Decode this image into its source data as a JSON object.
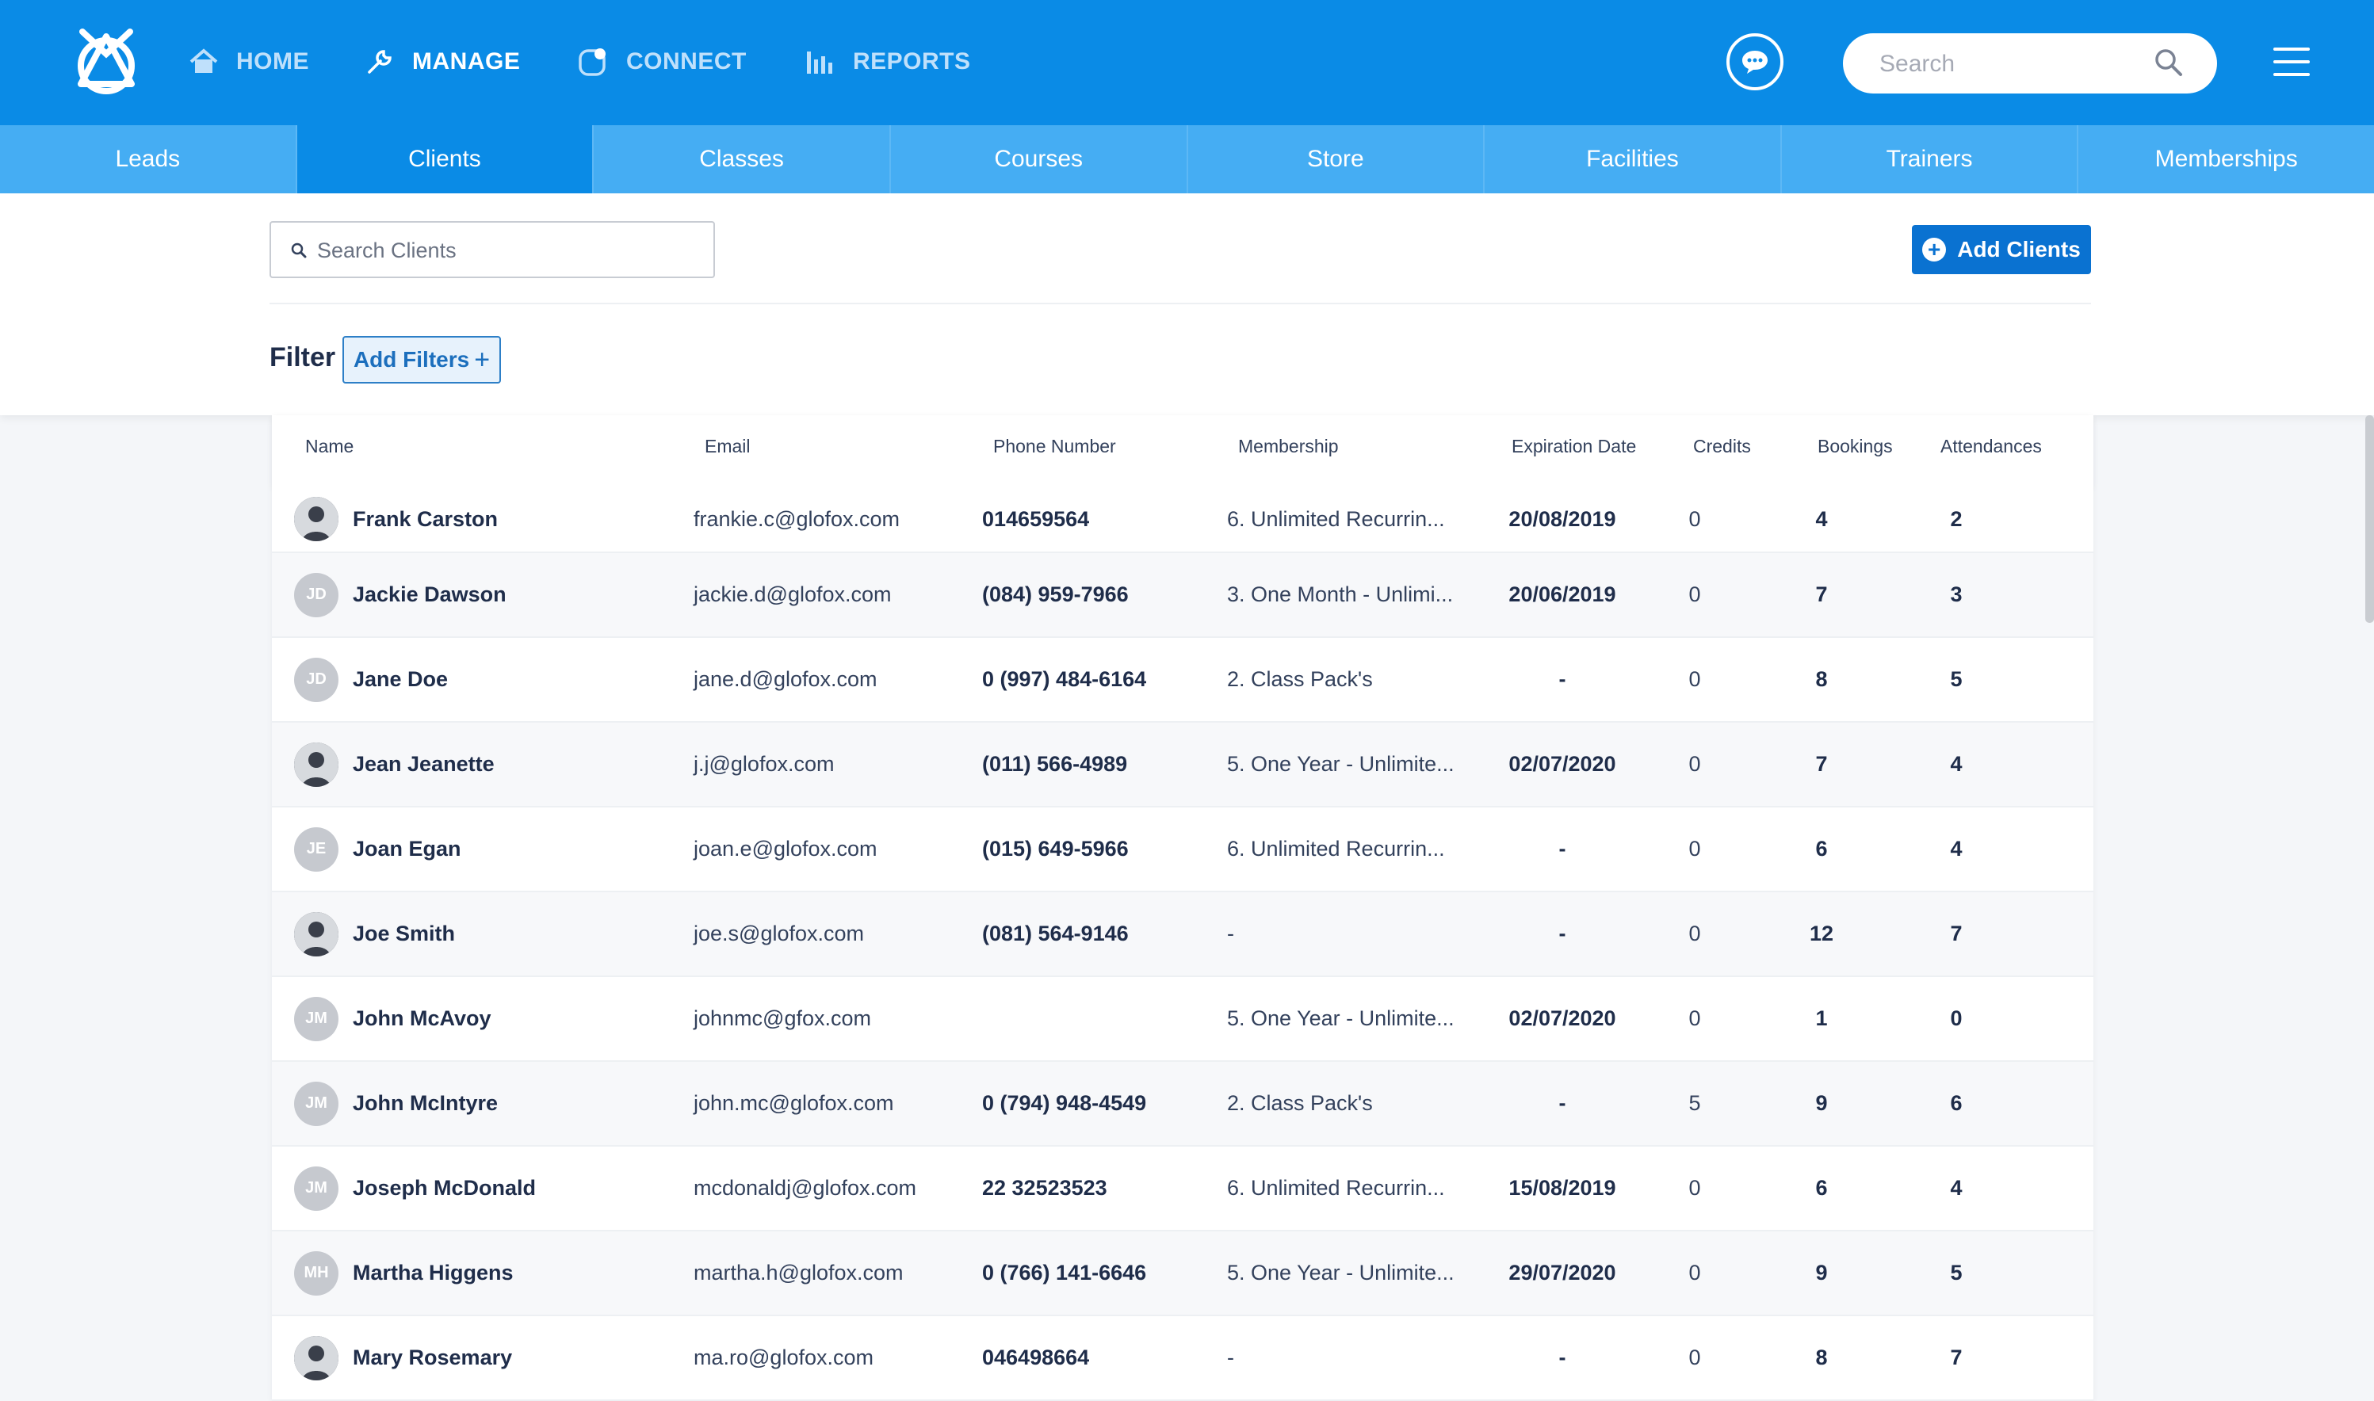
{
  "topnav": {
    "items": [
      {
        "label": "HOME",
        "icon": "home-icon"
      },
      {
        "label": "MANAGE",
        "icon": "wrench-icon"
      },
      {
        "label": "CONNECT",
        "icon": "connect-icon"
      },
      {
        "label": "REPORTS",
        "icon": "bar-chart-icon"
      }
    ],
    "active": "MANAGE",
    "search_placeholder": "Search"
  },
  "subnav": {
    "tabs": [
      "Leads",
      "Clients",
      "Classes",
      "Courses",
      "Store",
      "Facilities",
      "Trainers",
      "Memberships"
    ],
    "active": "Clients"
  },
  "toolbar": {
    "search_placeholder": "Search Clients",
    "add_clients_label": "Add Clients",
    "filter_label": "Filter",
    "add_filters_label": "Add Filters"
  },
  "table": {
    "columns": [
      "Name",
      "Email",
      "Phone Number",
      "Membership",
      "Expiration Date",
      "Credits",
      "Bookings",
      "Attendances"
    ],
    "rows": [
      {
        "name": "Frank Carston",
        "initials": "",
        "photo": true,
        "email": "frankie.c@glofox.com",
        "phone": "014659564",
        "membership": "6. Unlimited Recurrin...",
        "expiration": "20/08/2019",
        "credits": "0",
        "bookings": "4",
        "attendances": "2"
      },
      {
        "name": "Jackie Dawson",
        "initials": "JD",
        "photo": false,
        "email": "jackie.d@glofox.com",
        "phone": "(084) 959-7966",
        "membership": "3. One Month - Unlimi...",
        "expiration": "20/06/2019",
        "credits": "0",
        "bookings": "7",
        "attendances": "3"
      },
      {
        "name": "Jane Doe",
        "initials": "JD",
        "photo": false,
        "email": "jane.d@glofox.com",
        "phone": "0 (997) 484-6164",
        "membership": "2. Class Pack's",
        "expiration": "-",
        "credits": "0",
        "bookings": "8",
        "attendances": "5"
      },
      {
        "name": "Jean Jeanette",
        "initials": "",
        "photo": true,
        "email": "j.j@glofox.com",
        "phone": "(011) 566-4989",
        "membership": "5. One Year - Unlimite...",
        "expiration": "02/07/2020",
        "credits": "0",
        "bookings": "7",
        "attendances": "4"
      },
      {
        "name": "Joan Egan",
        "initials": "JE",
        "photo": false,
        "email": "joan.e@glofox.com",
        "phone": "(015) 649-5966",
        "membership": "6. Unlimited Recurrin...",
        "expiration": "-",
        "credits": "0",
        "bookings": "6",
        "attendances": "4"
      },
      {
        "name": "Joe Smith",
        "initials": "",
        "photo": true,
        "email": "joe.s@glofox.com",
        "phone": "(081) 564-9146",
        "membership": "-",
        "expiration": "-",
        "credits": "0",
        "bookings": "12",
        "attendances": "7"
      },
      {
        "name": "John McAvoy",
        "initials": "JM",
        "photo": false,
        "email": "johnmc@gfox.com",
        "phone": "",
        "membership": "5. One Year - Unlimite...",
        "expiration": "02/07/2020",
        "credits": "0",
        "bookings": "1",
        "attendances": "0"
      },
      {
        "name": "John McIntyre",
        "initials": "JM",
        "photo": false,
        "email": "john.mc@glofox.com",
        "phone": "0 (794) 948-4549",
        "membership": "2. Class Pack's",
        "expiration": "-",
        "credits": "5",
        "bookings": "9",
        "attendances": "6"
      },
      {
        "name": "Joseph McDonald",
        "initials": "JM",
        "photo": false,
        "email": "mcdonaldj@glofox.com",
        "phone": "22 32523523",
        "membership": "6. Unlimited Recurrin...",
        "expiration": "15/08/2019",
        "credits": "0",
        "bookings": "6",
        "attendances": "4"
      },
      {
        "name": "Martha Higgens",
        "initials": "MH",
        "photo": false,
        "email": "martha.h@glofox.com",
        "phone": "0 (766) 141-6646",
        "membership": "5. One Year - Unlimite...",
        "expiration": "29/07/2020",
        "credits": "0",
        "bookings": "9",
        "attendances": "5"
      },
      {
        "name": "Mary Rosemary",
        "initials": "",
        "photo": true,
        "email": "ma.ro@glofox.com",
        "phone": "046498664",
        "membership": "-",
        "expiration": "-",
        "credits": "0",
        "bookings": "8",
        "attendances": "7"
      }
    ]
  },
  "colors": {
    "topbar": "#0a8be6",
    "subnav": "#45adf3",
    "primary_button": "#0a72d1"
  }
}
